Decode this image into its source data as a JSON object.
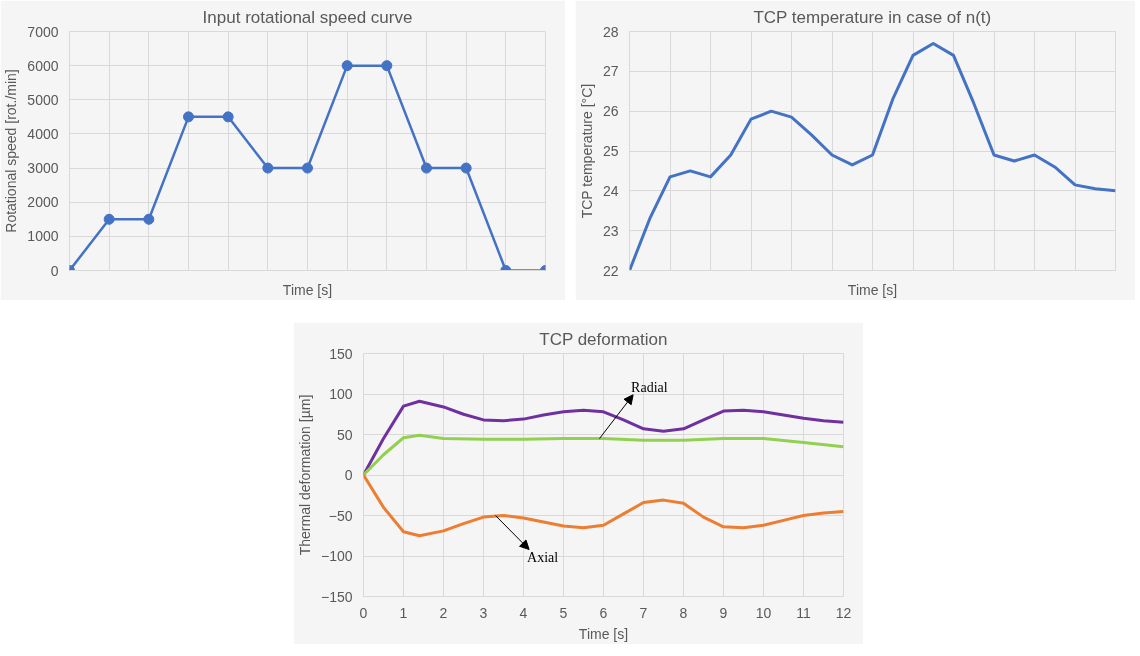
{
  "chart_data": [
    {
      "type": "line",
      "title": "Input rotational speed curve",
      "xlabel": "Time [s]",
      "ylabel": "Rotational speed [rot./min]",
      "categories": [
        null,
        null,
        null,
        null,
        null,
        null,
        null,
        null,
        null,
        null,
        null,
        null,
        null
      ],
      "series": [
        {
          "color": "#4472c4",
          "values": [
            0,
            1500,
            1500,
            4500,
            4500,
            3000,
            3000,
            6000,
            6000,
            3000,
            3000,
            0,
            0
          ]
        }
      ],
      "ylim": [
        0,
        7000
      ],
      "yticks": [
        0,
        1000,
        2000,
        3000,
        4000,
        5000,
        6000,
        7000
      ],
      "grid": true,
      "tick_labels": "y",
      "marker": "circle"
    },
    {
      "type": "line",
      "title": "TCP temperature in case of n(t)",
      "xlabel": "Time [s]",
      "ylabel": "TCP temperature [°C]",
      "categories": [
        null,
        null,
        null,
        null,
        null,
        null,
        null,
        null,
        null,
        null,
        null,
        null,
        null,
        null,
        null,
        null,
        null,
        null,
        null,
        null,
        null,
        null,
        null,
        null,
        null
      ],
      "series": [
        {
          "color": "#4472c4",
          "values": [
            22,
            23.3,
            24.35,
            24.5,
            24.35,
            24.9,
            25.8,
            26.0,
            25.85,
            25.4,
            24.9,
            24.65,
            24.9,
            26.3,
            27.4,
            27.7,
            27.4,
            26.2,
            24.9,
            24.75,
            24.9,
            24.6,
            24.15,
            24.05,
            24.0
          ]
        }
      ],
      "ylim": [
        22,
        28
      ],
      "yticks": [
        22,
        23,
        24,
        25,
        26,
        27,
        28
      ],
      "grid": true,
      "tick_labels": "y",
      "marker": "none"
    },
    {
      "type": "line",
      "title": "TCP deformation",
      "xlabel": "Time [s]",
      "ylabel": "Thermal deformation [µm]",
      "series": [
        {
          "color": "#7030a0",
          "x": [
            0,
            0.5,
            1,
            1.4,
            2,
            2.5,
            3,
            3.5,
            4,
            4.5,
            5,
            5.5,
            6,
            6.5,
            7,
            7.5,
            8,
            8.5,
            9,
            9.5,
            10,
            10.5,
            11,
            11.5,
            12
          ],
          "values": [
            0,
            45,
            85,
            91,
            84,
            75,
            68,
            67,
            69,
            74,
            78,
            80,
            78,
            68,
            57,
            54,
            57,
            68,
            79,
            80,
            78,
            74,
            70,
            67,
            65
          ]
        },
        {
          "color": "#92d050",
          "x": [
            0,
            0.5,
            1,
            1.4,
            2,
            3,
            4,
            5,
            6,
            7,
            8,
            9,
            10,
            11,
            12
          ],
          "values": [
            0,
            25,
            46,
            49,
            45,
            44,
            44,
            45,
            45,
            43,
            43,
            45,
            45,
            40,
            35
          ]
        },
        {
          "color": "#ed7d31",
          "x": [
            0,
            0.5,
            1,
            1.4,
            2,
            2.5,
            3,
            3.5,
            4,
            4.5,
            5,
            5.5,
            6,
            6.5,
            7,
            7.5,
            8,
            8.5,
            9,
            9.5,
            10,
            10.5,
            11,
            11.5,
            12
          ],
          "values": [
            0,
            -40,
            -70,
            -75,
            -69,
            -60,
            -52,
            -50,
            -53,
            -58,
            -63,
            -65,
            -62,
            -48,
            -34,
            -31,
            -35,
            -52,
            -64,
            -65,
            -62,
            -56,
            -50,
            -47,
            -45
          ]
        }
      ],
      "annotations": [
        {
          "text": "Radial",
          "x": 5.9,
          "y": 45
        },
        {
          "text": "Axial",
          "x": 3.3,
          "y": -50
        }
      ],
      "xlim": [
        0,
        12
      ],
      "xticks": [
        0,
        1,
        2,
        3,
        4,
        5,
        6,
        7,
        8,
        9,
        10,
        11,
        12
      ],
      "ylim": [
        -150,
        150
      ],
      "yticks": [
        -150,
        -100,
        -50,
        0,
        50,
        100,
        150
      ],
      "grid": true,
      "marker": "none"
    }
  ]
}
